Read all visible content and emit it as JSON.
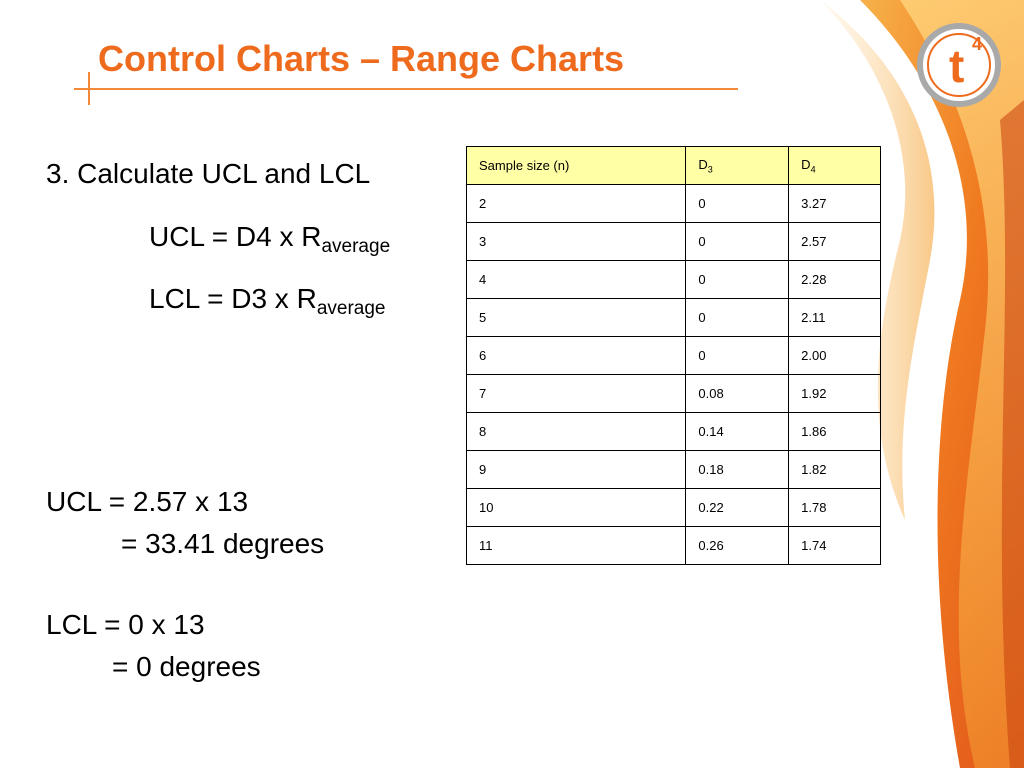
{
  "slide": {
    "title": "Control Charts – Range Charts",
    "step": "3. Calculate UCL and LCL",
    "ucl_formula": {
      "prefix": "UCL = D4 x R",
      "sub": "average"
    },
    "lcl_formula": {
      "prefix": "LCL = D3 x R",
      "sub": "average"
    },
    "ucl_calc_1": "UCL = 2.57 x 13",
    "ucl_calc_2": "= 33.41 degrees",
    "lcl_calc_1": "LCL = 0 x 13",
    "lcl_calc_2": "= 0  degrees"
  },
  "logo": {
    "letter": "t",
    "superscript": "4"
  },
  "table": {
    "headers": [
      {
        "main": "Sample size (n)",
        "sub": ""
      },
      {
        "main": "D",
        "sub": "3"
      },
      {
        "main": "D",
        "sub": "4"
      }
    ],
    "rows": [
      [
        "2",
        "0",
        "3.27"
      ],
      [
        "3",
        "0",
        "2.57"
      ],
      [
        "4",
        "0",
        "2.28"
      ],
      [
        "5",
        "0",
        "2.11"
      ],
      [
        "6",
        "0",
        "2.00"
      ],
      [
        "7",
        "0.08",
        "1.92"
      ],
      [
        "8",
        "0.14",
        "1.86"
      ],
      [
        "9",
        "0.18",
        "1.82"
      ],
      [
        "10",
        "0.22",
        "1.78"
      ],
      [
        "11",
        "0.26",
        "1.74"
      ]
    ]
  },
  "colors": {
    "accent": "#ee6a1d",
    "header_fill": "#ffffa6",
    "swoosh_dark": "#e04a10",
    "swoosh_light": "#f7a13a"
  }
}
